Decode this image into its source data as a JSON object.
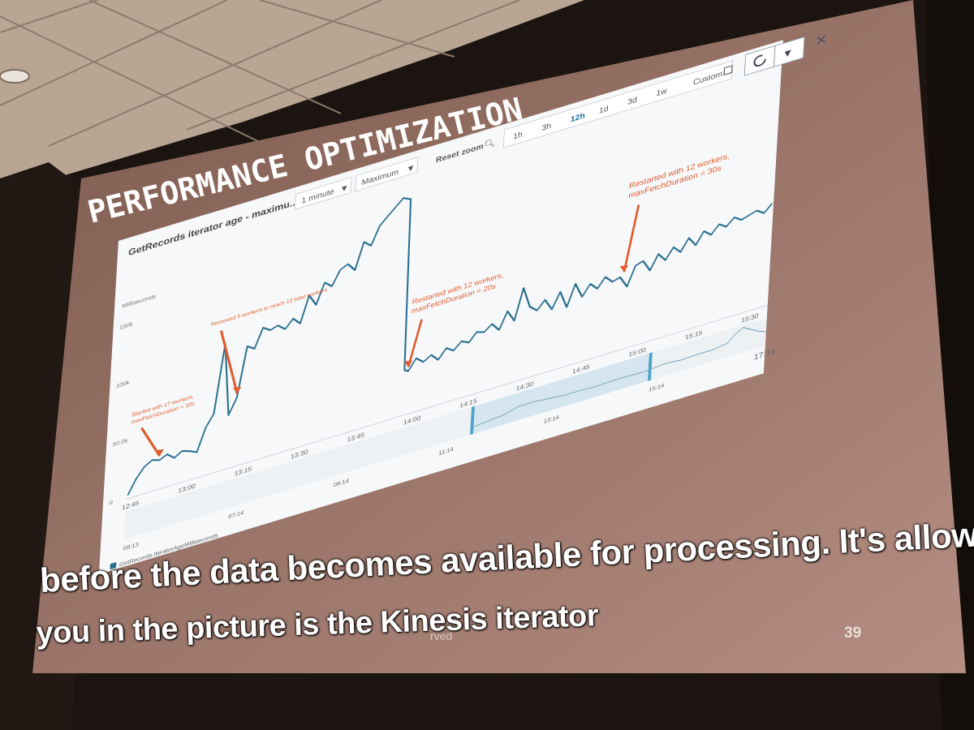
{
  "slide": {
    "title": "PERFORMANCE OPTIMIZATION",
    "page_number": "39",
    "copyright_fragment": "rved",
    "caption_line_1": "before the data becomes available for processing. It's allow",
    "caption_line_2": "you in the picture is the Kinesis iterator"
  },
  "widget": {
    "title": "GetRecords iterator age - maximu...",
    "period_select": "1 minute",
    "statistic_select": "Maximum",
    "reset_zoom_label": "Reset zoom",
    "time_ranges": [
      "1h",
      "3h",
      "12h",
      "1d",
      "3d",
      "1w"
    ],
    "active_range": "12h",
    "custom_label": "Custom",
    "icons": {
      "reset_zoom": "magnifier-icon",
      "custom": "calendar-icon",
      "refresh": "refresh-icon",
      "dropdown": "chevron-down-icon",
      "close": "close-icon"
    },
    "y_axis_label": "Milliseconds",
    "y_ticks": [
      "150k",
      "100k",
      "50.0k",
      "0"
    ],
    "legend_label": "GetRecords.IteratorAgeMilliseconds",
    "navigator_labels": [
      "09:13",
      "07:14",
      "09:14",
      "11:14",
      "13:14",
      "15:14",
      "17:14"
    ],
    "annotations": [
      "Started with 17 workers, maxFetchDuration = 10s",
      "Removed 5 workers to reach 12 total workers",
      "Restarted with 12 workers, maxFetchDuration = 20s",
      "Restarted with 12 workers, maxFetchDuration = 30s"
    ],
    "colors": {
      "series": "#2b6f8f",
      "annotation": "#e25b2c",
      "active_range": "#1a6e9a",
      "navigator_handle": "#4aa3c8"
    }
  },
  "chart_data": {
    "type": "line",
    "title": "GetRecords iterator age - maximu...",
    "ylabel": "Milliseconds",
    "xlabel": "",
    "ylim": [
      0,
      190000
    ],
    "x_ticks": [
      "12:45",
      "13:00",
      "13:15",
      "13:30",
      "13:45",
      "14:00",
      "14:15",
      "14:30",
      "14:45",
      "15:00",
      "15:15",
      "15:30"
    ],
    "y_ticks": [
      "0",
      "50.0k",
      "100k",
      "150k"
    ],
    "grid": false,
    "legend": "bottom-left",
    "series": [
      {
        "name": "GetRecords.IteratorAgeMilliseconds",
        "x": [
          "12:44",
          "12:46",
          "12:48",
          "12:50",
          "12:52",
          "12:54",
          "12:56",
          "12:58",
          "13:00",
          "13:02",
          "13:04",
          "13:06",
          "13:08",
          "13:10",
          "13:12",
          "13:14",
          "13:16",
          "13:18",
          "13:20",
          "13:22",
          "13:24",
          "13:26",
          "13:28",
          "13:30",
          "13:32",
          "13:34",
          "13:36",
          "13:38",
          "13:40",
          "13:42",
          "13:44",
          "13:46",
          "13:48",
          "13:50",
          "13:52",
          "13:54",
          "13:56",
          "13:57",
          "13:58",
          "14:00",
          "14:02",
          "14:04",
          "14:06",
          "14:08",
          "14:10",
          "14:12",
          "14:14",
          "14:16",
          "14:18",
          "14:20",
          "14:22",
          "14:24",
          "14:26",
          "14:28",
          "14:30",
          "14:32",
          "14:34",
          "14:36",
          "14:38",
          "14:40",
          "14:42",
          "14:44",
          "14:46",
          "14:48",
          "14:50",
          "14:52",
          "14:54",
          "14:56",
          "14:58",
          "15:00",
          "15:02",
          "15:04",
          "15:06",
          "15:08",
          "15:10",
          "15:12",
          "15:14",
          "15:16",
          "15:18",
          "15:20",
          "15:22",
          "15:24",
          "15:26",
          "15:28",
          "15:30",
          "15:32",
          "15:34"
        ],
        "y": [
          2000,
          14000,
          22000,
          26000,
          24000,
          27000,
          22000,
          26000,
          24000,
          21000,
          40000,
          50000,
          108000,
          45000,
          58000,
          100000,
          96000,
          112000,
          108000,
          110000,
          105000,
          112000,
          106000,
          128000,
          118000,
          135000,
          130000,
          142000,
          145000,
          138000,
          160000,
          155000,
          170000,
          176000,
          182000,
          188000,
          185000,
          38000,
          36000,
          45000,
          40000,
          44000,
          38000,
          46000,
          42000,
          48000,
          45000,
          52000,
          50000,
          55000,
          48000,
          62000,
          52000,
          78000,
          60000,
          55000,
          62000,
          52000,
          65000,
          50000,
          68000,
          55000,
          64000,
          58000,
          66000,
          60000,
          62000,
          52000,
          68000,
          70000,
          60000,
          72000,
          65000,
          74000,
          68000,
          78000,
          70000,
          80000,
          75000,
          82000,
          78000,
          84000,
          80000,
          82000,
          84000,
          80000,
          86000
        ]
      }
    ],
    "annotations": [
      {
        "text": "Started with 17 workers, maxFetchDuration = 10s",
        "x": "12:52"
      },
      {
        "text": "Removed 5 workers to reach 12 total workers",
        "x": "13:12"
      },
      {
        "text": "Restarted with 12 workers, maxFetchDuration = 20s",
        "x": "13:58"
      },
      {
        "text": "Restarted with 12 workers, maxFetchDuration = 30s",
        "x": "14:55"
      }
    ]
  }
}
